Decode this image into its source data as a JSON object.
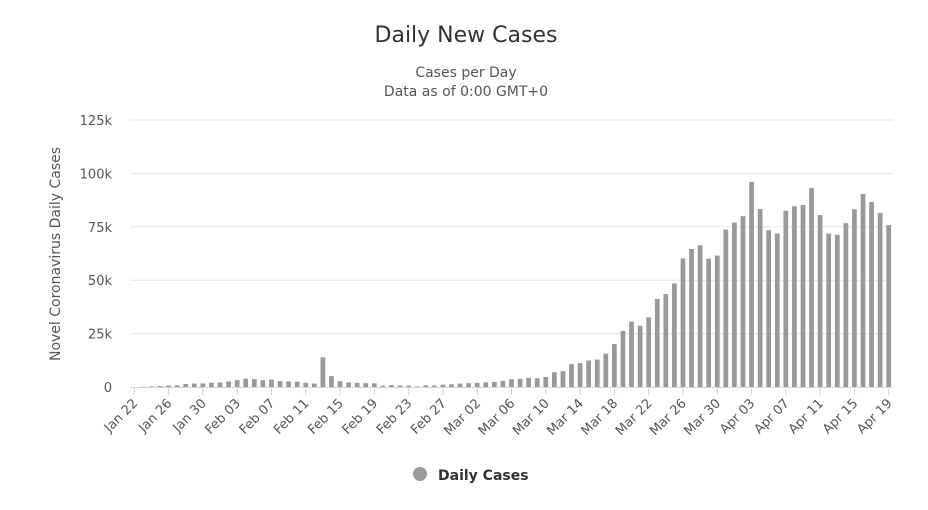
{
  "chart_data": {
    "type": "bar",
    "title": "Daily New Cases",
    "subtitle": [
      "Cases per Day",
      "Data as of 0:00 GMT+0"
    ],
    "ylabel": "Novel Coronavirus Daily Cases",
    "xlabel": "",
    "ylim": [
      0,
      125000
    ],
    "y_ticks": [
      0,
      25000,
      50000,
      75000,
      100000,
      125000
    ],
    "y_tick_labels": [
      "0",
      "25k",
      "50k",
      "75k",
      "100k",
      "125k"
    ],
    "grid": "horizontal",
    "legend": "bottom-center",
    "x_tick_labels": [
      "Jan 22",
      "Jan 26",
      "Jan 30",
      "Feb 03",
      "Feb 07",
      "Feb 11",
      "Feb 15",
      "Feb 19",
      "Feb 23",
      "Feb 27",
      "Mar 02",
      "Mar 06",
      "Mar 10",
      "Mar 14",
      "Mar 18",
      "Mar 22",
      "Mar 26",
      "Mar 30",
      "Apr 03",
      "Apr 07",
      "Apr 11",
      "Apr 15",
      "Apr 19"
    ],
    "categories": [
      "Jan 22",
      "Jan 23",
      "Jan 24",
      "Jan 25",
      "Jan 26",
      "Jan 27",
      "Jan 28",
      "Jan 29",
      "Jan 30",
      "Jan 31",
      "Feb 01",
      "Feb 02",
      "Feb 03",
      "Feb 04",
      "Feb 05",
      "Feb 06",
      "Feb 07",
      "Feb 08",
      "Feb 09",
      "Feb 10",
      "Feb 11",
      "Feb 12",
      "Feb 13",
      "Feb 14",
      "Feb 15",
      "Feb 16",
      "Feb 17",
      "Feb 18",
      "Feb 19",
      "Feb 20",
      "Feb 21",
      "Feb 22",
      "Feb 23",
      "Feb 24",
      "Feb 25",
      "Feb 26",
      "Feb 27",
      "Feb 28",
      "Feb 29",
      "Mar 01",
      "Mar 02",
      "Mar 03",
      "Mar 04",
      "Mar 05",
      "Mar 06",
      "Mar 07",
      "Mar 08",
      "Mar 09",
      "Mar 10",
      "Mar 11",
      "Mar 12",
      "Mar 13",
      "Mar 14",
      "Mar 15",
      "Mar 16",
      "Mar 17",
      "Mar 18",
      "Mar 19",
      "Mar 20",
      "Mar 21",
      "Mar 22",
      "Mar 23",
      "Mar 24",
      "Mar 25",
      "Mar 26",
      "Mar 27",
      "Mar 28",
      "Mar 29",
      "Mar 30",
      "Mar 31",
      "Apr 01",
      "Apr 02",
      "Apr 03",
      "Apr 04",
      "Apr 05",
      "Apr 06",
      "Apr 07",
      "Apr 08",
      "Apr 09",
      "Apr 10",
      "Apr 11",
      "Apr 12",
      "Apr 13",
      "Apr 14",
      "Apr 15",
      "Apr 16",
      "Apr 17",
      "Apr 18",
      "Apr 19"
    ],
    "series": [
      {
        "name": "Daily Cases",
        "color": "#999999",
        "values": [
          0,
          100,
          250,
          450,
          700,
          800,
          1400,
          1600,
          1700,
          2000,
          2100,
          2600,
          3200,
          3900,
          3700,
          3200,
          3500,
          2700,
          2600,
          2500,
          2000,
          1600,
          13900,
          5100,
          2700,
          2100,
          1900,
          1800,
          1700,
          600,
          900,
          700,
          600,
          300,
          800,
          700,
          1100,
          1300,
          1600,
          1800,
          1900,
          2200,
          2400,
          2900,
          3600,
          3800,
          4300,
          4100,
          4700,
          6900,
          7400,
          10700,
          11200,
          12400,
          12800,
          15600,
          20100,
          26200,
          30600,
          28700,
          32600,
          41200,
          43500,
          48500,
          60200,
          64600,
          66300,
          60100,
          61500,
          73700,
          77000,
          80000,
          96000,
          83300,
          73400,
          71900,
          82500,
          84600,
          85200,
          93200,
          80500,
          71800,
          71200,
          76700,
          83200,
          90400,
          86600,
          81500,
          75800
        ]
      }
    ]
  }
}
